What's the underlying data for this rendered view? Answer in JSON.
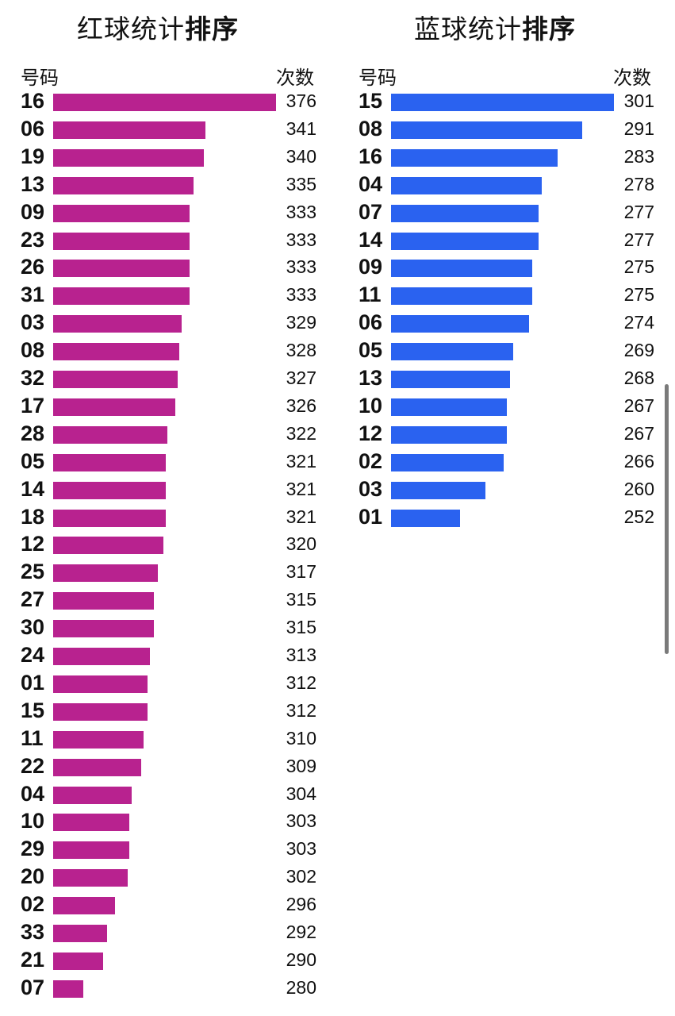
{
  "left": {
    "title_normal": "红球统计",
    "title_bold": "排序",
    "col_number": "号码",
    "col_count": "次数"
  },
  "right": {
    "title_normal": "蓝球统计",
    "title_bold": "排序",
    "col_number": "号码",
    "col_count": "次数"
  },
  "colors": {
    "red_bar": "#b8228f",
    "blue_bar": "#2a62f0"
  },
  "chart_data": [
    {
      "type": "bar",
      "orientation": "horizontal",
      "categories": [
        "16",
        "06",
        "19",
        "13",
        "09",
        "23",
        "26",
        "31",
        "03",
        "08",
        "32",
        "17",
        "28",
        "05",
        "14",
        "18",
        "12",
        "25",
        "27",
        "30",
        "24",
        "01",
        "15",
        "11",
        "22",
        "04",
        "10",
        "29",
        "20",
        "02",
        "33",
        "21",
        "07"
      ],
      "values": [
        376,
        341,
        340,
        335,
        333,
        333,
        333,
        333,
        329,
        328,
        327,
        326,
        322,
        321,
        321,
        321,
        320,
        317,
        315,
        315,
        313,
        312,
        312,
        310,
        309,
        304,
        303,
        303,
        302,
        296,
        292,
        290,
        280
      ],
      "xlim": [
        265,
        376
      ]
    },
    {
      "type": "bar",
      "orientation": "horizontal",
      "categories": [
        "15",
        "08",
        "16",
        "04",
        "07",
        "14",
        "09",
        "11",
        "06",
        "05",
        "13",
        "10",
        "12",
        "02",
        "03",
        "01"
      ],
      "values": [
        301,
        291,
        283,
        278,
        277,
        277,
        275,
        275,
        274,
        269,
        268,
        267,
        267,
        266,
        260,
        252
      ],
      "xlim": [
        230,
        301
      ]
    }
  ]
}
